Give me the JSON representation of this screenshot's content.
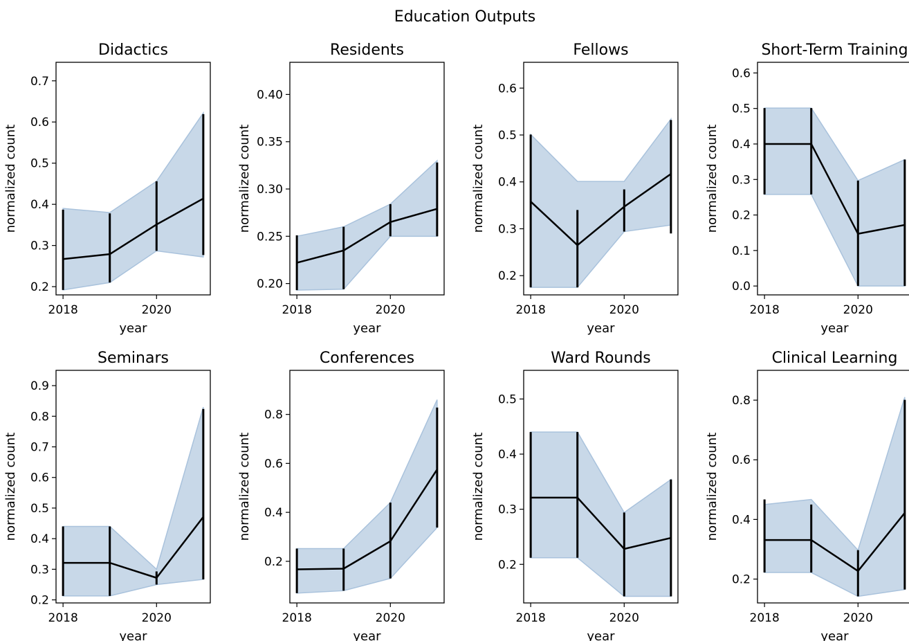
{
  "figure": {
    "title": "Education Outputs"
  },
  "chart_data": [
    {
      "type": "line",
      "title": "Didactics",
      "xlabel": "year",
      "ylabel": "normalized count",
      "x": [
        2018,
        2019,
        2020,
        2021
      ],
      "y": [
        0.267,
        0.279,
        0.351,
        0.414
      ],
      "err_low": [
        0.192,
        0.21,
        0.287,
        0.277
      ],
      "err_high": [
        0.387,
        0.378,
        0.456,
        0.619
      ],
      "band_low": [
        0.192,
        0.21,
        0.287,
        0.272
      ],
      "band_high": [
        0.39,
        0.38,
        0.456,
        0.622
      ],
      "xlim": [
        2017.85,
        2021.15
      ],
      "ylim": [
        0.18,
        0.745
      ],
      "xticks": [
        2018,
        2020
      ],
      "yticks": [
        0.2,
        0.3,
        0.4,
        0.5,
        0.6,
        0.7
      ],
      "ytick_labels": [
        "0.2",
        "0.3",
        "0.4",
        "0.5",
        "0.6",
        "0.7"
      ]
    },
    {
      "type": "line",
      "title": "Residents",
      "xlabel": "year",
      "ylabel": "normalized count",
      "x": [
        2018,
        2019,
        2020,
        2021
      ],
      "y": [
        0.222,
        0.235,
        0.265,
        0.279
      ],
      "err_low": [
        0.193,
        0.194,
        0.25,
        0.25
      ],
      "err_high": [
        0.251,
        0.26,
        0.284,
        0.328
      ],
      "band_low": [
        0.193,
        0.194,
        0.25,
        0.25
      ],
      "band_high": [
        0.25,
        0.26,
        0.284,
        0.33
      ],
      "xlim": [
        2017.85,
        2021.15
      ],
      "ylim": [
        0.188,
        0.434
      ],
      "xticks": [
        2018,
        2020
      ],
      "yticks": [
        0.2,
        0.25,
        0.3,
        0.35,
        0.4
      ],
      "ytick_labels": [
        "0.20",
        "0.25",
        "0.30",
        "0.35",
        "0.40"
      ]
    },
    {
      "type": "line",
      "title": "Fellows",
      "xlabel": "year",
      "ylabel": "normalized count",
      "x": [
        2018,
        2019,
        2020,
        2021
      ],
      "y": [
        0.358,
        0.265,
        0.347,
        0.417
      ],
      "err_low": [
        0.175,
        0.175,
        0.294,
        0.29
      ],
      "err_high": [
        0.501,
        0.34,
        0.384,
        0.532
      ],
      "band_low": [
        0.175,
        0.175,
        0.294,
        0.308
      ],
      "band_high": [
        0.501,
        0.401,
        0.401,
        0.534
      ],
      "xlim": [
        2017.85,
        2021.15
      ],
      "ylim": [
        0.159,
        0.655
      ],
      "xticks": [
        2018,
        2020
      ],
      "yticks": [
        0.2,
        0.3,
        0.4,
        0.5,
        0.6
      ],
      "ytick_labels": [
        "0.2",
        "0.3",
        "0.4",
        "0.5",
        "0.6"
      ]
    },
    {
      "type": "line",
      "title": "Short-Term Training",
      "xlabel": "year",
      "ylabel": "normalized count",
      "x": [
        2018,
        2019,
        2020,
        2021
      ],
      "y": [
        0.4,
        0.4,
        0.147,
        0.172
      ],
      "err_low": [
        0.258,
        0.258,
        0.0,
        0.0
      ],
      "err_high": [
        0.501,
        0.501,
        0.297,
        0.356
      ],
      "band_low": [
        0.258,
        0.258,
        0.0,
        0.0
      ],
      "band_high": [
        0.501,
        0.501,
        0.297,
        0.356
      ],
      "xlim": [
        2017.85,
        2021.15
      ],
      "ylim": [
        -0.025,
        0.63
      ],
      "xticks": [
        2018,
        2020
      ],
      "yticks": [
        0.0,
        0.1,
        0.2,
        0.3,
        0.4,
        0.5,
        0.6
      ],
      "ytick_labels": [
        "0.0",
        "0.1",
        "0.2",
        "0.3",
        "0.4",
        "0.5",
        "0.6"
      ]
    },
    {
      "type": "line",
      "title": "Seminars",
      "xlabel": "year",
      "ylabel": "normalized count",
      "x": [
        2018,
        2019,
        2020,
        2021
      ],
      "y": [
        0.321,
        0.321,
        0.272,
        0.471
      ],
      "err_low": [
        0.213,
        0.213,
        0.25,
        0.267
      ],
      "err_high": [
        0.44,
        0.44,
        0.293,
        0.824
      ],
      "band_low": [
        0.213,
        0.213,
        0.25,
        0.267
      ],
      "band_high": [
        0.44,
        0.44,
        0.3,
        0.83
      ],
      "xlim": [
        2017.85,
        2021.15
      ],
      "ylim": [
        0.19,
        0.95
      ],
      "xticks": [
        2018,
        2020
      ],
      "yticks": [
        0.2,
        0.3,
        0.4,
        0.5,
        0.6,
        0.7,
        0.8,
        0.9
      ],
      "ytick_labels": [
        "0.2",
        "0.3",
        "0.4",
        "0.5",
        "0.6",
        "0.7",
        "0.8",
        "0.9"
      ]
    },
    {
      "type": "line",
      "title": "Conferences",
      "xlabel": "year",
      "ylabel": "normalized count",
      "x": [
        2018,
        2019,
        2020,
        2021
      ],
      "y": [
        0.167,
        0.17,
        0.282,
        0.575
      ],
      "err_low": [
        0.07,
        0.08,
        0.13,
        0.338
      ],
      "err_high": [
        0.252,
        0.252,
        0.44,
        0.828
      ],
      "band_low": [
        0.07,
        0.08,
        0.13,
        0.338
      ],
      "band_high": [
        0.252,
        0.252,
        0.44,
        0.86
      ],
      "xlim": [
        2017.85,
        2021.15
      ],
      "ylim": [
        0.03,
        0.98
      ],
      "xticks": [
        2018,
        2020
      ],
      "yticks": [
        0.2,
        0.4,
        0.6,
        0.8
      ],
      "ytick_labels": [
        "0.2",
        "0.4",
        "0.6",
        "0.8"
      ]
    },
    {
      "type": "line",
      "title": "Ward Rounds",
      "xlabel": "year",
      "ylabel": "normalized count",
      "x": [
        2018,
        2019,
        2020,
        2021
      ],
      "y": [
        0.321,
        0.321,
        0.228,
        0.248
      ],
      "err_low": [
        0.212,
        0.212,
        0.142,
        0.142
      ],
      "err_high": [
        0.44,
        0.44,
        0.294,
        0.354
      ],
      "band_low": [
        0.212,
        0.212,
        0.142,
        0.142
      ],
      "band_high": [
        0.44,
        0.44,
        0.294,
        0.354
      ],
      "xlim": [
        2017.85,
        2021.15
      ],
      "ylim": [
        0.13,
        0.552
      ],
      "xticks": [
        2018,
        2020
      ],
      "yticks": [
        0.2,
        0.3,
        0.4,
        0.5
      ],
      "ytick_labels": [
        "0.2",
        "0.3",
        "0.4",
        "0.5"
      ]
    },
    {
      "type": "line",
      "title": "Clinical Learning",
      "xlabel": "year",
      "ylabel": "normalized count",
      "x": [
        2018,
        2019,
        2020,
        2021
      ],
      "y": [
        0.331,
        0.331,
        0.227,
        0.422
      ],
      "err_low": [
        0.222,
        0.222,
        0.142,
        0.165
      ],
      "err_high": [
        0.467,
        0.45,
        0.297,
        0.801
      ],
      "band_low": [
        0.222,
        0.222,
        0.142,
        0.165
      ],
      "band_high": [
        0.45,
        0.467,
        0.297,
        0.81
      ],
      "xlim": [
        2017.85,
        2021.15
      ],
      "ylim": [
        0.12,
        0.9
      ],
      "xticks": [
        2018,
        2020
      ],
      "yticks": [
        0.2,
        0.4,
        0.6,
        0.8
      ],
      "ytick_labels": [
        "0.2",
        "0.4",
        "0.6",
        "0.8"
      ]
    }
  ],
  "colors": {
    "band": "#c8d8e8",
    "band_edge": "#a9c2dc",
    "line": "#000000",
    "axes": "#000000"
  }
}
